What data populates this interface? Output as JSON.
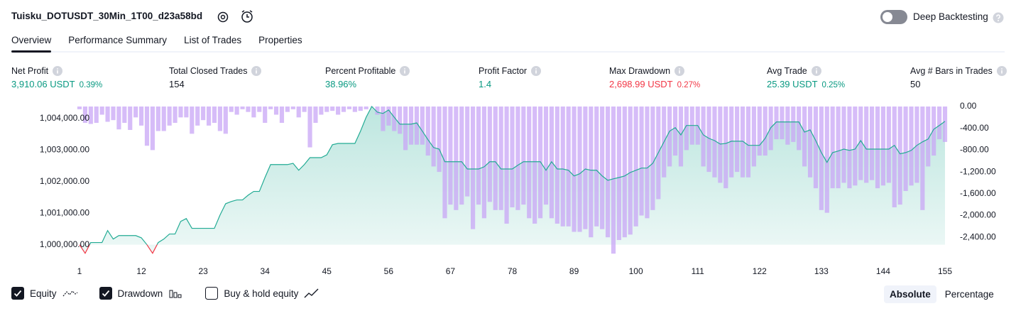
{
  "header": {
    "title": "Tuisku_DOTUSDT_30Min_1T00_d23a58bd",
    "deep_backtesting": "Deep Backtesting",
    "deep_backtesting_on": false
  },
  "tabs": [
    "Overview",
    "Performance Summary",
    "List of Trades",
    "Properties"
  ],
  "active_tab": 0,
  "metrics": [
    {
      "label": "Net Profit",
      "value": "3,910.06 USDT",
      "percent": "0.39%",
      "color": "#089981"
    },
    {
      "label": "Total Closed Trades",
      "value": "154",
      "color": "#131722"
    },
    {
      "label": "Percent Profitable",
      "value": "38.96%",
      "color": "#089981"
    },
    {
      "label": "Profit Factor",
      "value": "1.4",
      "color": "#089981"
    },
    {
      "label": "Max Drawdown",
      "value": "2,698.99 USDT",
      "percent": "0.27%",
      "color": "#f23645"
    },
    {
      "label": "Avg Trade",
      "value": "25.39 USDT",
      "percent": "0.25%",
      "color": "#089981"
    },
    {
      "label": "Avg # Bars in Trades",
      "value": "50",
      "color": "#131722"
    }
  ],
  "chart_data": {
    "type": "line",
    "x": [
      1,
      2,
      3,
      4,
      5,
      6,
      7,
      8,
      9,
      10,
      11,
      12,
      13,
      14,
      15,
      16,
      17,
      18,
      19,
      20,
      21,
      22,
      23,
      24,
      25,
      26,
      27,
      28,
      29,
      30,
      31,
      32,
      33,
      34,
      35,
      36,
      37,
      38,
      39,
      40,
      41,
      42,
      43,
      44,
      45,
      46,
      47,
      48,
      49,
      50,
      51,
      52,
      53,
      54,
      55,
      56,
      57,
      58,
      59,
      60,
      61,
      62,
      63,
      64,
      65,
      66,
      67,
      68,
      69,
      70,
      71,
      72,
      73,
      74,
      75,
      76,
      77,
      78,
      79,
      80,
      81,
      82,
      83,
      84,
      85,
      86,
      87,
      88,
      89,
      90,
      91,
      92,
      93,
      94,
      95,
      96,
      97,
      98,
      99,
      100,
      101,
      102,
      103,
      104,
      105,
      106,
      107,
      108,
      109,
      110,
      111,
      112,
      113,
      114,
      115,
      116,
      117,
      118,
      119,
      120,
      121,
      122,
      123,
      124,
      125,
      126,
      127,
      128,
      129,
      130,
      131,
      132,
      133,
      134,
      135,
      136,
      137,
      138,
      139,
      140,
      141,
      142,
      143,
      144,
      145,
      146,
      147,
      148,
      149,
      150,
      151,
      152,
      153,
      154,
      155
    ],
    "series": [
      {
        "name": "Equity",
        "type": "line",
        "color": "#22ab94",
        "negative_color": "#f23645",
        "visible": true,
        "values": [
          1000000,
          999730,
          1000070,
          1000070,
          1000070,
          1000450,
          1000180,
          1000290,
          1000290,
          1000290,
          1000290,
          1000220,
          1000000,
          999730,
          1000070,
          1000180,
          1000340,
          1000340,
          1000740,
          1000830,
          1000520,
          1000520,
          1000520,
          1000520,
          1000520,
          1000940,
          1001300,
          1001370,
          1001420,
          1001420,
          1001570,
          1001690,
          1001690,
          1002130,
          1002540,
          1002540,
          1002540,
          1002540,
          1002580,
          1002360,
          1002540,
          1002760,
          1002760,
          1002760,
          1002850,
          1003170,
          1003210,
          1003210,
          1003210,
          1003210,
          1003600,
          1004040,
          1004380,
          1004200,
          1004160,
          1004270,
          1004040,
          1003820,
          1003820,
          1003820,
          1003860,
          1003600,
          1003330,
          1003080,
          1003030,
          1002630,
          1002630,
          1002630,
          1002630,
          1002400,
          1002400,
          1002400,
          1002470,
          1002630,
          1002630,
          1002400,
          1002400,
          1002400,
          1002520,
          1002630,
          1002630,
          1002630,
          1002630,
          1002360,
          1002630,
          1002400,
          1002400,
          1002360,
          1002180,
          1002250,
          1002400,
          1002360,
          1002360,
          1002180,
          1002040,
          1002090,
          1002130,
          1002180,
          1002290,
          1002360,
          1002430,
          1002430,
          1002580,
          1002920,
          1003260,
          1003600,
          1003710,
          1003480,
          1003780,
          1003780,
          1003780,
          1003480,
          1003370,
          1003300,
          1003190,
          1003210,
          1003280,
          1003280,
          1003280,
          1003150,
          1003150,
          1003150,
          1003370,
          1003710,
          1003890,
          1003890,
          1003890,
          1003890,
          1003890,
          1003570,
          1003640,
          1003300,
          1002920,
          1002610,
          1002920,
          1002970,
          1003030,
          1002990,
          1003030,
          1003300,
          1003030,
          1003030,
          1003030,
          1003030,
          1003030,
          1003150,
          1002880,
          1002920,
          1002990,
          1003150,
          1003260,
          1003350,
          1003660,
          1003780,
          1003910
        ]
      },
      {
        "name": "Drawdown",
        "type": "bar",
        "axis": "y2",
        "color": "#c8a6f5",
        "visible": true,
        "values": [
          -50,
          -300,
          -320,
          -300,
          -150,
          -280,
          -250,
          -420,
          -300,
          -430,
          -200,
          -350,
          -720,
          -800,
          -450,
          -450,
          -350,
          -300,
          -200,
          -200,
          -500,
          -350,
          -250,
          -350,
          -300,
          -450,
          -500,
          -100,
          -150,
          -50,
          -100,
          -200,
          -100,
          -300,
          -50,
          -150,
          -300,
          -100,
          -50,
          -200,
          -100,
          -750,
          -300,
          -150,
          -100,
          -80,
          -150,
          -100,
          -50,
          -100,
          -80,
          -50,
          0,
          -150,
          -450,
          -350,
          -450,
          -500,
          -800,
          -700,
          -700,
          -700,
          -900,
          -1100,
          -1200,
          -2050,
          -1800,
          -1900,
          -1800,
          -1650,
          -2250,
          -1800,
          -2050,
          -1750,
          -1900,
          -1900,
          -2150,
          -1850,
          -1900,
          -1800,
          -2050,
          -2150,
          -2050,
          -1800,
          -2050,
          -2150,
          -2200,
          -2200,
          -2300,
          -2300,
          -2250,
          -2400,
          -2200,
          -2250,
          -2400,
          -2700,
          -2450,
          -2400,
          -2350,
          -2200,
          -2000,
          -2050,
          -1900,
          -1700,
          -1300,
          -1100,
          -900,
          -1100,
          -800,
          -700,
          -700,
          -1100,
          -1200,
          -1300,
          -1400,
          -1500,
          -1300,
          -1200,
          -1300,
          -1300,
          -1100,
          -900,
          -900,
          -800,
          -600,
          -600,
          -700,
          -650,
          -800,
          -1100,
          -1300,
          -1500,
          -1900,
          -1950,
          -1500,
          -1500,
          -1400,
          -1500,
          -1450,
          -1350,
          -1400,
          -1350,
          -1500,
          -1450,
          -1400,
          -1850,
          -1800,
          -1550,
          -1450,
          -1400,
          -1900,
          -1100,
          -900,
          -600,
          -650
        ]
      }
    ],
    "other_series": [
      {
        "name": "Buy & hold equity",
        "visible": false
      }
    ],
    "xlim": [
      1,
      155
    ],
    "xticks": [
      1,
      12,
      23,
      34,
      45,
      56,
      67,
      78,
      89,
      100,
      111,
      122,
      133,
      144,
      155
    ],
    "ylim": [
      999700,
      1004380
    ],
    "yticks": [
      {
        "value": 1000000,
        "label": "1,000,000.00"
      },
      {
        "value": 1001000,
        "label": "1,001,000.00"
      },
      {
        "value": 1002000,
        "label": "1,002,000.00"
      },
      {
        "value": 1003000,
        "label": "1,003,000.00"
      },
      {
        "value": 1004000,
        "label": "1,004,000.00"
      }
    ],
    "y2lim": [
      -2710,
      0
    ],
    "y2ticks": [
      {
        "value": 0,
        "label": "0.00"
      },
      {
        "value": -400,
        "label": "-400.00"
      },
      {
        "value": -800,
        "label": "-800.00"
      },
      {
        "value": -1200,
        "label": "-1,200.00"
      },
      {
        "value": -1600,
        "label": "-1,600.00"
      },
      {
        "value": -2000,
        "label": "-2,000.00"
      },
      {
        "value": -2400,
        "label": "-2,400.00"
      }
    ],
    "grid": false
  },
  "view_modes": [
    "Absolute",
    "Percentage"
  ],
  "active_view": 0
}
